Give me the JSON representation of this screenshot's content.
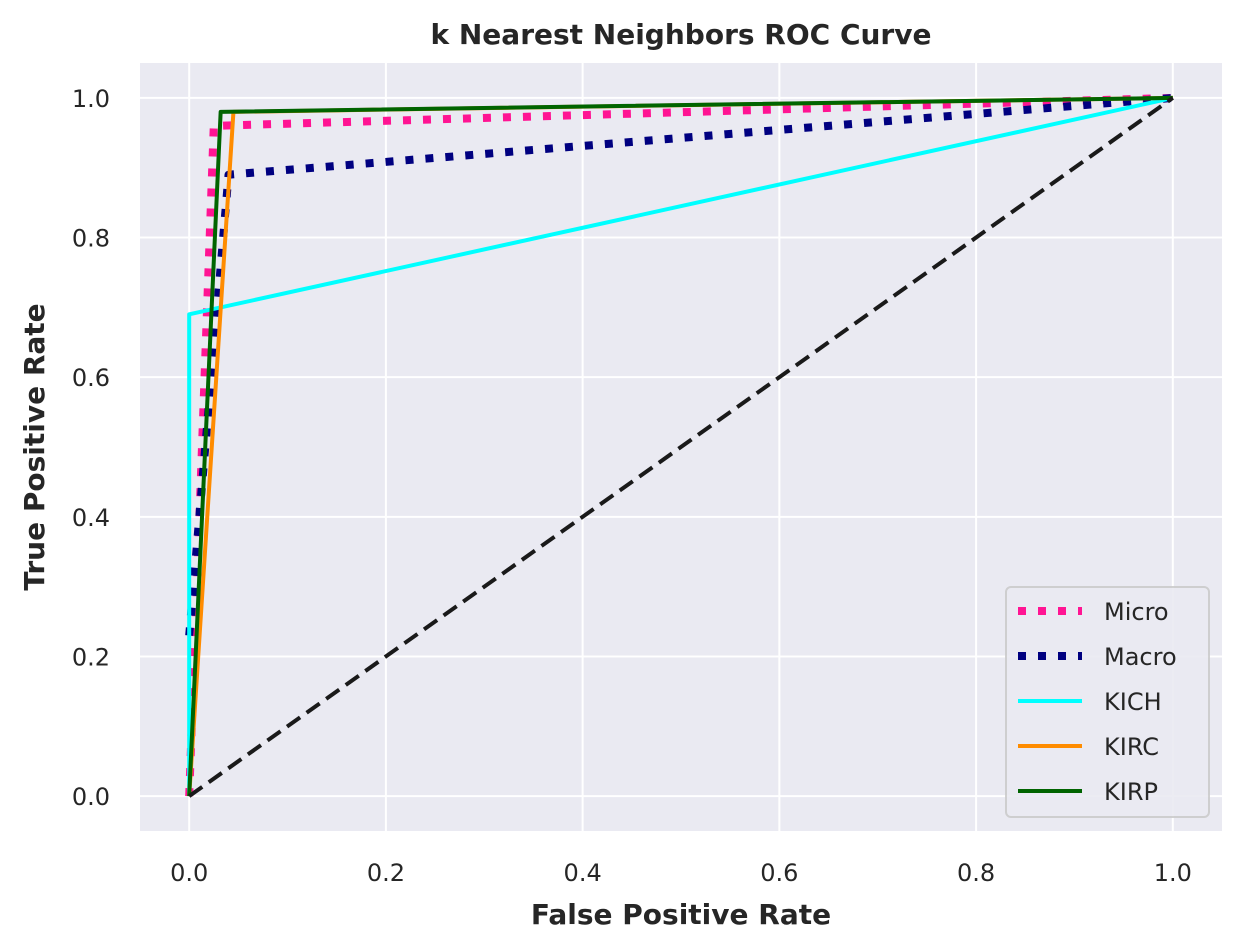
{
  "chart_data": {
    "type": "line",
    "title": "k Nearest Neighbors ROC Curve",
    "xlabel": "False Positive Rate",
    "ylabel": "True Positive Rate",
    "xlim": [
      -0.05,
      1.05
    ],
    "ylim": [
      -0.05,
      1.05
    ],
    "xticks": [
      "0.0",
      "0.2",
      "0.4",
      "0.6",
      "0.8",
      "1.0"
    ],
    "yticks": [
      "0.0",
      "0.2",
      "0.4",
      "0.6",
      "0.8",
      "1.0"
    ],
    "grid": true,
    "legend_position": "lower-right",
    "series": [
      {
        "name": "Micro",
        "color": "#ff1493",
        "style": "dotted",
        "x": [
          0.0,
          0.025,
          1.0
        ],
        "y": [
          0.0,
          0.96,
          1.0
        ]
      },
      {
        "name": "Macro",
        "color": "#000080",
        "style": "dotted",
        "x": [
          0.0,
          0.04,
          1.0
        ],
        "y": [
          0.23,
          0.89,
          1.0
        ]
      },
      {
        "name": "KICH",
        "color": "#00ffff",
        "style": "solid",
        "x": [
          0.0,
          0.0,
          1.0
        ],
        "y": [
          0.0,
          0.69,
          1.0
        ]
      },
      {
        "name": "KIRC",
        "color": "#ff8c00",
        "style": "solid",
        "x": [
          0.0,
          0.045,
          1.0
        ],
        "y": [
          0.0,
          0.98,
          1.0
        ]
      },
      {
        "name": "KIRP",
        "color": "#006400",
        "style": "solid",
        "x": [
          0.0,
          0.032,
          1.0
        ],
        "y": [
          0.0,
          0.98,
          1.0
        ]
      }
    ],
    "diagonal": {
      "color": "#1a1a1a",
      "style": "dashed",
      "x": [
        0,
        1
      ],
      "y": [
        0,
        1
      ]
    }
  }
}
